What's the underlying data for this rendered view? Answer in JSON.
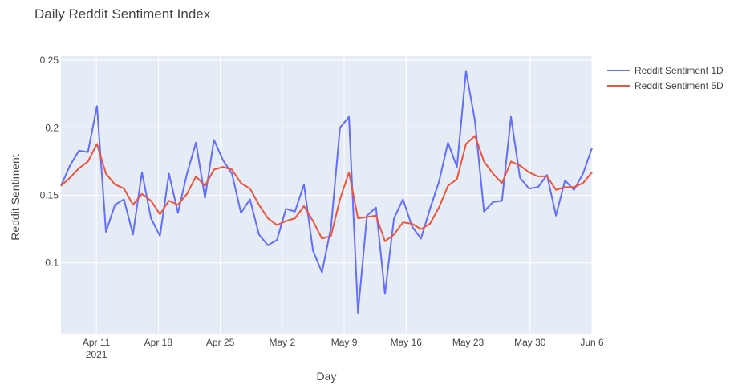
{
  "chart_data": {
    "type": "line",
    "title": "Daily Reddit Sentiment Index",
    "xlabel": "Day",
    "ylabel": "Reddit Sentiment",
    "x_start": "2021-04-07",
    "x_end": "2021-06-06",
    "ylim": [
      0.047,
      0.253
    ],
    "x_ticks": [
      {
        "date": "2021-04-11",
        "label": "Apr 11",
        "sublabel": "2021"
      },
      {
        "date": "2021-04-18",
        "label": "Apr 18"
      },
      {
        "date": "2021-04-25",
        "label": "Apr 25"
      },
      {
        "date": "2021-05-02",
        "label": "May 2"
      },
      {
        "date": "2021-05-09",
        "label": "May 9"
      },
      {
        "date": "2021-05-16",
        "label": "May 16"
      },
      {
        "date": "2021-05-23",
        "label": "May 23"
      },
      {
        "date": "2021-05-30",
        "label": "May 30"
      },
      {
        "date": "2021-06-06",
        "label": "Jun 6"
      }
    ],
    "y_ticks": [
      {
        "value": 0.1,
        "label": "0.1"
      },
      {
        "value": 0.15,
        "label": "0.15"
      },
      {
        "value": 0.2,
        "label": "0.2"
      },
      {
        "value": 0.25,
        "label": "0.25"
      }
    ],
    "grid": true,
    "legend_position": "top-right",
    "series": [
      {
        "name": "Reddit Sentiment 1D",
        "color": "#636efa",
        "values": [
          0.157,
          0.172,
          0.183,
          0.182,
          0.216,
          0.123,
          0.143,
          0.147,
          0.121,
          0.167,
          0.133,
          0.12,
          0.166,
          0.137,
          0.166,
          0.189,
          0.148,
          0.191,
          0.176,
          0.166,
          0.137,
          0.147,
          0.121,
          0.113,
          0.117,
          0.14,
          0.138,
          0.158,
          0.109,
          0.093,
          0.126,
          0.2,
          0.208,
          0.063,
          0.135,
          0.141,
          0.077,
          0.133,
          0.147,
          0.127,
          0.118,
          0.14,
          0.16,
          0.189,
          0.171,
          0.242,
          0.205,
          0.138,
          0.145,
          0.146,
          0.208,
          0.163,
          0.155,
          0.156,
          0.165,
          0.135,
          0.161,
          0.154,
          0.166,
          0.185
        ]
      },
      {
        "name": "Reddit Sentiment 5D",
        "color": "#ef553b",
        "values": [
          0.157,
          0.163,
          0.17,
          0.175,
          0.188,
          0.166,
          0.158,
          0.155,
          0.143,
          0.151,
          0.146,
          0.136,
          0.146,
          0.143,
          0.151,
          0.164,
          0.157,
          0.169,
          0.171,
          0.169,
          0.159,
          0.155,
          0.143,
          0.133,
          0.128,
          0.131,
          0.133,
          0.142,
          0.131,
          0.118,
          0.12,
          0.147,
          0.167,
          0.133,
          0.134,
          0.135,
          0.116,
          0.121,
          0.13,
          0.129,
          0.125,
          0.129,
          0.141,
          0.157,
          0.162,
          0.188,
          0.194,
          0.175,
          0.166,
          0.159,
          0.175,
          0.172,
          0.167,
          0.164,
          0.164,
          0.154,
          0.156,
          0.156,
          0.159,
          0.167
        ]
      }
    ]
  }
}
